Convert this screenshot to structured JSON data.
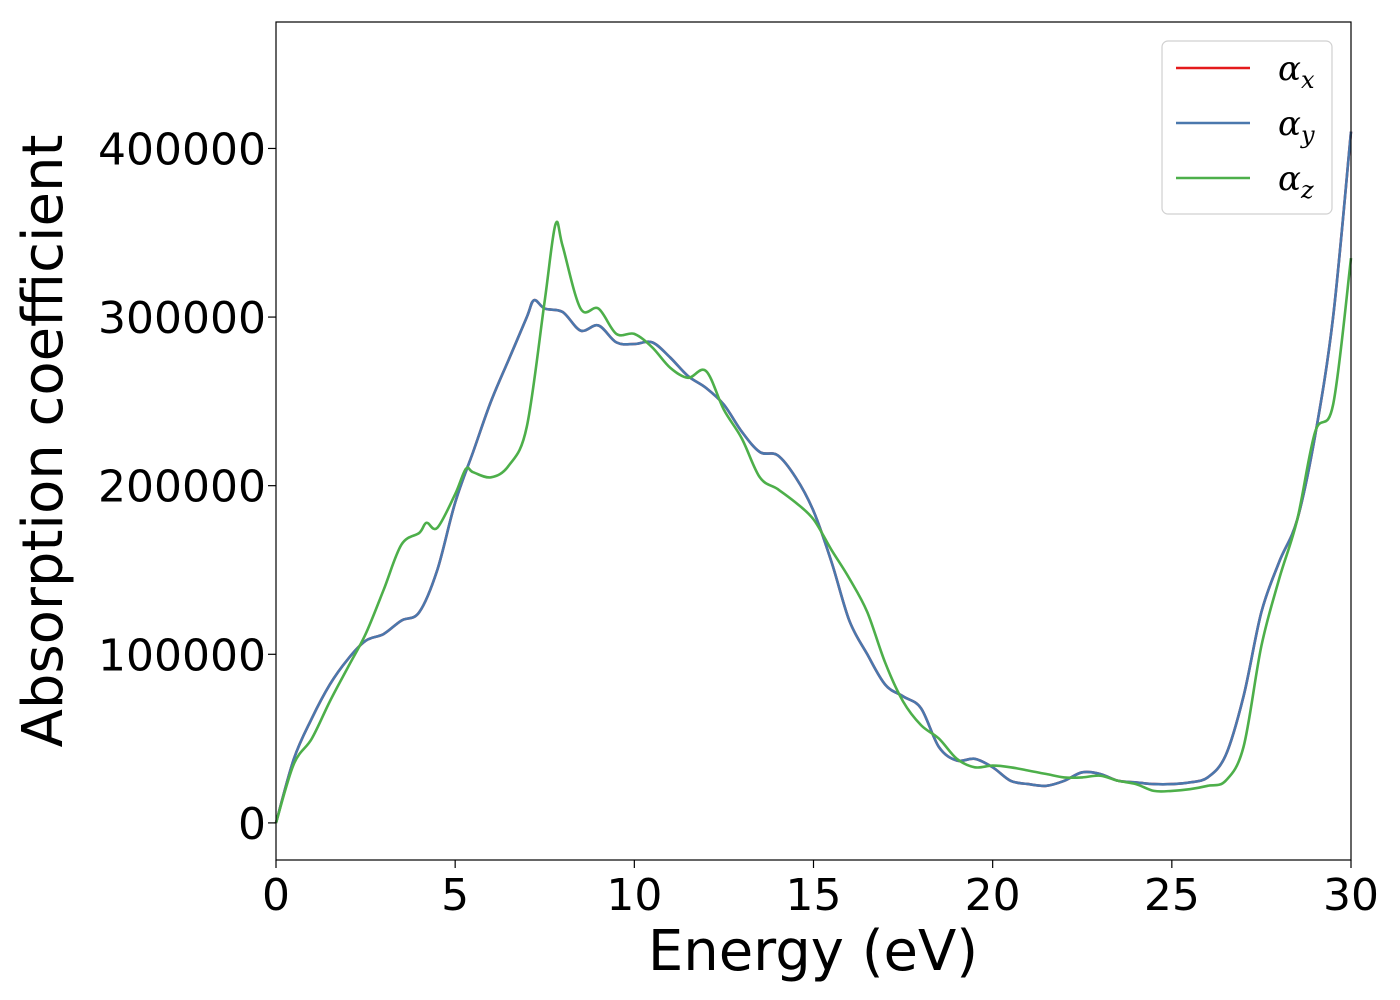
{
  "chart_data": {
    "type": "line",
    "title": "",
    "xlabel": "Energy (eV)",
    "ylabel": "Absorption coefficient",
    "xlim": [
      0,
      30
    ],
    "ylim": [
      -22000,
      475000
    ],
    "xticks": [
      0,
      5,
      10,
      15,
      20,
      25,
      30
    ],
    "xtick_labels": [
      "0",
      "5",
      "10",
      "15",
      "20",
      "25",
      "30"
    ],
    "yticks": [
      0,
      100000,
      200000,
      300000,
      400000
    ],
    "ytick_labels": [
      "0",
      "100000",
      "200000",
      "300000",
      "400000"
    ],
    "grid": false,
    "legend_position": "top-right",
    "series": [
      {
        "name": "α",
        "subscript": "x",
        "color": "#e41a1c",
        "x": [
          0,
          0.5,
          1,
          1.5,
          2,
          2.5,
          3,
          3.5,
          4,
          4.5,
          5,
          5.5,
          6,
          6.5,
          7,
          7.2,
          7.5,
          8,
          8.5,
          9,
          9.5,
          10,
          10.5,
          11,
          11.5,
          12,
          12.5,
          13,
          13.5,
          14,
          14.5,
          15,
          15.5,
          16,
          16.5,
          17,
          17.5,
          18,
          18.5,
          19,
          19.5,
          20,
          20.5,
          21,
          21.5,
          22,
          22.5,
          23,
          23.5,
          24,
          24.5,
          25,
          25.5,
          26,
          26.5,
          27,
          27.5,
          28,
          28.5,
          29,
          29.5,
          30
        ],
        "y": [
          0,
          38000,
          62000,
          82000,
          97000,
          108000,
          112000,
          120000,
          125000,
          150000,
          190000,
          220000,
          250000,
          275000,
          300000,
          310000,
          305000,
          303000,
          292000,
          295000,
          285000,
          284000,
          285000,
          276000,
          265000,
          258000,
          248000,
          232000,
          220000,
          218000,
          205000,
          185000,
          155000,
          120000,
          100000,
          82000,
          75000,
          68000,
          45000,
          37000,
          38000,
          33000,
          25000,
          23000,
          22000,
          25000,
          30000,
          29000,
          25000,
          24000,
          23000,
          23000,
          24000,
          27000,
          40000,
          75000,
          125000,
          155000,
          180000,
          230000,
          300000,
          410000
        ]
      },
      {
        "name": "α",
        "subscript": "y",
        "color": "#4a78ad",
        "x": [
          0,
          0.5,
          1,
          1.5,
          2,
          2.5,
          3,
          3.5,
          4,
          4.5,
          5,
          5.5,
          6,
          6.5,
          7,
          7.2,
          7.5,
          8,
          8.5,
          9,
          9.5,
          10,
          10.5,
          11,
          11.5,
          12,
          12.5,
          13,
          13.5,
          14,
          14.5,
          15,
          15.5,
          16,
          16.5,
          17,
          17.5,
          18,
          18.5,
          19,
          19.5,
          20,
          20.5,
          21,
          21.5,
          22,
          22.5,
          23,
          23.5,
          24,
          24.5,
          25,
          25.5,
          26,
          26.5,
          27,
          27.5,
          28,
          28.5,
          29,
          29.5,
          30
        ],
        "y": [
          0,
          38000,
          62000,
          82000,
          97000,
          108000,
          112000,
          120000,
          125000,
          150000,
          190000,
          220000,
          250000,
          275000,
          300000,
          310000,
          305000,
          303000,
          292000,
          295000,
          285000,
          284000,
          285000,
          276000,
          265000,
          258000,
          248000,
          232000,
          220000,
          218000,
          205000,
          185000,
          155000,
          120000,
          100000,
          82000,
          75000,
          68000,
          45000,
          37000,
          38000,
          33000,
          25000,
          23000,
          22000,
          25000,
          30000,
          29000,
          25000,
          24000,
          23000,
          23000,
          24000,
          27000,
          40000,
          75000,
          125000,
          155000,
          180000,
          230000,
          300000,
          410000
        ]
      },
      {
        "name": "α",
        "subscript": "z",
        "color": "#4daf4a",
        "x": [
          0,
          0.5,
          1,
          1.5,
          2,
          2.5,
          3,
          3.5,
          4,
          4.2,
          4.5,
          5,
          5.3,
          5.5,
          6,
          6.5,
          7,
          7.5,
          7.8,
          8,
          8.5,
          9,
          9.5,
          10,
          10.5,
          11,
          11.5,
          12,
          12.5,
          13,
          13.5,
          14,
          14.5,
          15,
          15.5,
          16,
          16.5,
          17,
          17.5,
          18,
          18.5,
          19,
          19.5,
          20,
          20.5,
          21,
          21.5,
          22,
          22.5,
          23,
          23.5,
          24,
          24.5,
          25,
          25.5,
          26,
          26.5,
          27,
          27.5,
          28,
          28.5,
          29,
          29.5,
          30
        ],
        "y": [
          0,
          35000,
          50000,
          72000,
          92000,
          112000,
          138000,
          165000,
          172000,
          178000,
          175000,
          195000,
          210000,
          208000,
          205000,
          212000,
          235000,
          310000,
          355000,
          342000,
          305000,
          305000,
          290000,
          290000,
          282000,
          270000,
          264000,
          268000,
          245000,
          228000,
          205000,
          198000,
          190000,
          180000,
          162000,
          145000,
          125000,
          95000,
          72000,
          58000,
          50000,
          38000,
          33000,
          34000,
          33000,
          31000,
          29000,
          27000,
          27000,
          28000,
          25000,
          23000,
          19000,
          19000,
          20000,
          22000,
          25000,
          45000,
          105000,
          145000,
          180000,
          232000,
          248000,
          335000
        ]
      }
    ]
  }
}
